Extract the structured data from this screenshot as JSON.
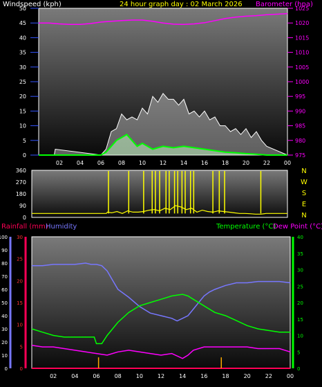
{
  "colors": {
    "bg": "#000000",
    "frame": "#ffffff",
    "wind": "#ffffff",
    "gust_fill": "#c8ffc8",
    "avg_wind": "#00ff00",
    "barometer": "#ff00ff",
    "direction": "#ffff00",
    "rainfall": "#ff0055",
    "humidity": "#7777ff",
    "temperature": "#00ff00",
    "dewpoint": "#ff00ff",
    "title": "#ffff00",
    "tick": "#ffffff",
    "rain_tick": "#ff3333"
  },
  "chart_data": [
    {
      "id": "wind",
      "type": "line",
      "title": "24 hour graph day : 02 March 2026",
      "left_label": "Windspeed (kph)",
      "right_label": "Barometer (hpa)",
      "x_ticks": [
        "02",
        "04",
        "06",
        "08",
        "10",
        "12",
        "14",
        "16",
        "18",
        "20",
        "22",
        "00"
      ],
      "x_range": [
        0,
        24
      ],
      "y_left_range": [
        0,
        50
      ],
      "y_left_ticks": [
        0,
        5,
        10,
        15,
        20,
        25,
        30,
        35,
        40,
        45,
        50
      ],
      "y_right_range": [
        975,
        1025
      ],
      "y_right_ticks": [
        975,
        980,
        985,
        990,
        995,
        1000,
        1005,
        1010,
        1015,
        1020,
        1025
      ],
      "barometer": {
        "x": [
          0,
          1,
          2,
          3,
          4,
          5,
          6,
          7,
          8,
          9,
          10,
          11,
          12,
          13,
          14,
          15,
          16,
          17,
          18,
          19,
          20,
          21,
          22,
          23,
          24
        ],
        "y": [
          1020,
          1020,
          1019.7,
          1019.5,
          1019.5,
          1019.8,
          1020.3,
          1020.6,
          1020.8,
          1021,
          1021,
          1020.6,
          1020,
          1019.6,
          1019.5,
          1019.7,
          1020.1,
          1020.8,
          1021.5,
          1022,
          1022.3,
          1022.5,
          1022.8,
          1023,
          1023.2
        ]
      },
      "wind_gust": {
        "x": [
          0,
          1.5,
          1.6,
          6,
          6.5,
          7,
          7.5,
          8,
          8.5,
          9,
          9.5,
          10,
          10.5,
          11,
          11.5,
          12,
          12.5,
          13,
          13.5,
          14,
          14.5,
          15,
          15.5,
          16,
          16.5,
          17,
          17.5,
          18,
          18.5,
          19,
          19.5,
          20,
          20.5,
          21,
          21.5,
          22,
          24
        ],
        "y": [
          0,
          0,
          2,
          0,
          2,
          8,
          9,
          14,
          12,
          13,
          12,
          16,
          14,
          20,
          18,
          21,
          19,
          19,
          17,
          19,
          14,
          15,
          13,
          15,
          12,
          13,
          10,
          10,
          8,
          9,
          7,
          9,
          6,
          8,
          5,
          3,
          0
        ]
      },
      "wind_avg": {
        "x": [
          0,
          6,
          6.5,
          7,
          7.5,
          8,
          8.5,
          9,
          9.5,
          10,
          10.5,
          11,
          12,
          13,
          14,
          15,
          16,
          17,
          18,
          19,
          20,
          21,
          22,
          24
        ],
        "y": [
          0,
          0,
          1,
          3,
          5,
          6,
          7,
          5,
          3,
          4,
          3,
          2,
          3,
          2.5,
          3,
          2.5,
          2,
          1.5,
          1,
          0.8,
          0.5,
          0.3,
          0,
          0
        ]
      }
    },
    {
      "id": "direction",
      "type": "line",
      "right_labels": [
        "N",
        "W",
        "S",
        "E",
        "N"
      ],
      "x_range": [
        0,
        24
      ],
      "y_range": [
        0,
        360
      ],
      "y_ticks": [
        0,
        90,
        180,
        270,
        360
      ],
      "direction": {
        "x": [
          0,
          7,
          7.1,
          7.5,
          8,
          8.5,
          9,
          9.5,
          10,
          10.5,
          11,
          11.5,
          12,
          12.5,
          13,
          13.5,
          14,
          14.5,
          15,
          15.5,
          16,
          16.5,
          17,
          17.5,
          18,
          18.5,
          19,
          19.5,
          20,
          20.5,
          21,
          21.5,
          22,
          24
        ],
        "y": [
          30,
          30,
          40,
          35,
          45,
          30,
          50,
          40,
          40,
          45,
          55,
          60,
          50,
          70,
          60,
          90,
          80,
          60,
          70,
          40,
          55,
          45,
          40,
          50,
          45,
          40,
          35,
          30,
          30,
          28,
          25,
          25,
          30,
          30
        ]
      },
      "direction_spikes": [
        7.2,
        9.1,
        10.5,
        11.3,
        11.6,
        12.0,
        12.6,
        12.9,
        13.4,
        13.7,
        14.1,
        14.4,
        14.9,
        15.2,
        17.0,
        17.6,
        18.1,
        21.5
      ]
    },
    {
      "id": "temp",
      "type": "line",
      "left_label_1": "Rainfall (mm)",
      "left_label_2": "Humidity",
      "right_label_1": "Temperature (°C)",
      "right_label_2": "Dew Point (°C)",
      "x_ticks": [
        "02",
        "04",
        "06",
        "08",
        "10",
        "12",
        "14",
        "16",
        "18",
        "20",
        "22",
        "00"
      ],
      "x_range": [
        0,
        24
      ],
      "humidity_range": [
        0,
        100
      ],
      "humidity_ticks": [
        0,
        10,
        20,
        30,
        40,
        50,
        60,
        70,
        80,
        90,
        100
      ],
      "rain_range": [
        0,
        30
      ],
      "rain_ticks": [
        0,
        5,
        10,
        15,
        20,
        25,
        30
      ],
      "temp_range": [
        0,
        40
      ],
      "temp_ticks": [
        0,
        5,
        10,
        15,
        20,
        25,
        30,
        35,
        40
      ],
      "humidity": {
        "x": [
          0,
          1,
          2,
          3,
          4,
          5,
          5.5,
          6,
          6.5,
          7,
          7.5,
          8,
          9,
          10,
          11,
          12,
          13,
          13.5,
          14,
          14.5,
          15,
          15.5,
          16,
          16.5,
          17,
          18,
          19,
          20,
          21,
          22,
          23,
          24
        ],
        "y": [
          78,
          78,
          79,
          79,
          79,
          80,
          79,
          79,
          78,
          74,
          67,
          60,
          54,
          47,
          42,
          40,
          38,
          36,
          38,
          40,
          45,
          50,
          55,
          58,
          60,
          63,
          65,
          65,
          66,
          66,
          66,
          65
        ]
      },
      "temperature": {
        "x": [
          0,
          1,
          2,
          3,
          4,
          5,
          5.8,
          6,
          6.5,
          7,
          7.5,
          8,
          9,
          10,
          11,
          12,
          13,
          14,
          14.5,
          15,
          16,
          17,
          18,
          19,
          20,
          21,
          22,
          23,
          24
        ],
        "y": [
          12,
          11,
          10,
          9.5,
          9.5,
          9.5,
          9.5,
          7.5,
          7.5,
          10,
          12,
          14,
          17,
          19,
          20,
          21,
          22,
          22.5,
          22,
          21,
          19,
          17,
          16,
          14.5,
          13,
          12,
          11.5,
          11,
          11
        ]
      },
      "dewpoint": {
        "x": [
          0,
          1,
          2,
          3,
          4,
          5,
          6,
          7,
          8,
          9,
          10,
          11,
          12,
          13,
          14,
          14.5,
          15,
          16,
          17,
          18,
          19,
          20,
          21,
          22,
          23,
          24
        ],
        "y": [
          7,
          6.5,
          6.5,
          6,
          5.5,
          5,
          4.5,
          4,
          5,
          5.5,
          5,
          4.5,
          4,
          4.5,
          3,
          4,
          5.5,
          6.5,
          6.5,
          6.5,
          6.5,
          6.5,
          6,
          6,
          6,
          5
        ]
      },
      "rainfall": {
        "x": [
          0,
          24
        ],
        "y": [
          0,
          0
        ]
      },
      "rain_marks": [
        6.2,
        17.6
      ]
    }
  ]
}
